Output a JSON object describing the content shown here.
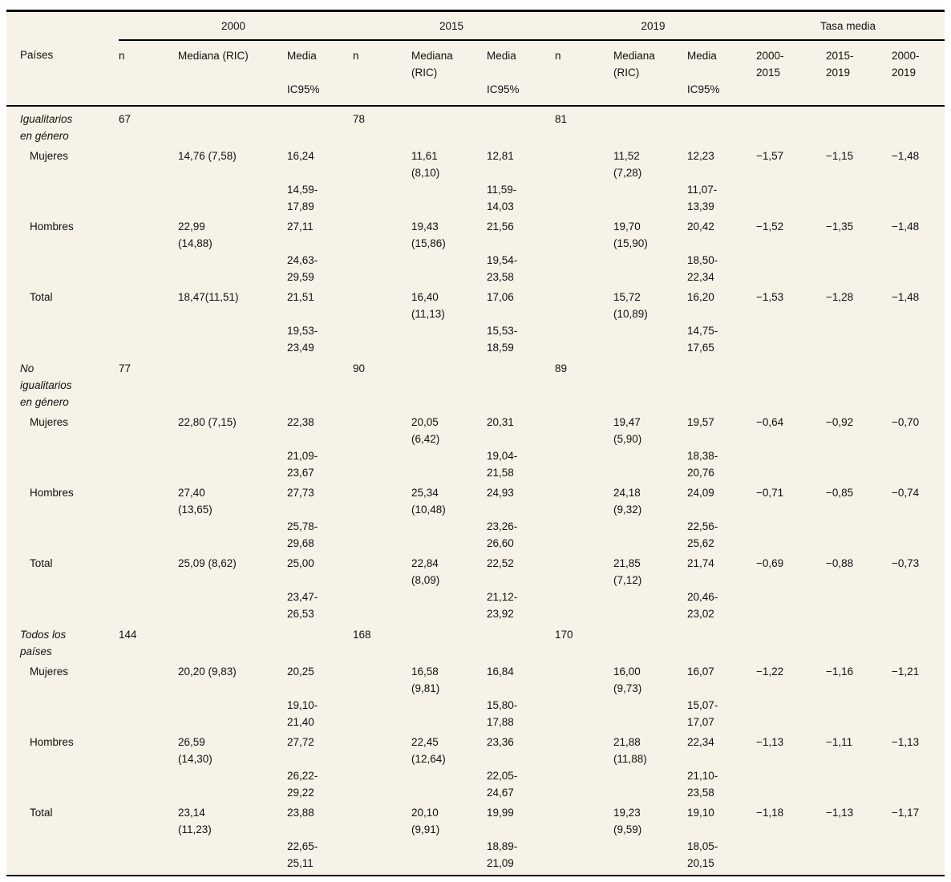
{
  "colors": {
    "table_background": "#f6f2e8",
    "rule": "#000000",
    "text": "#111111"
  },
  "table": {
    "header": {
      "groups": [
        {
          "label": "",
          "span": 1
        },
        {
          "label": "2000",
          "span": 3
        },
        {
          "label": "2015",
          "span": 3
        },
        {
          "label": "2019",
          "span": 3
        },
        {
          "label": "Tasa media",
          "span": 3
        }
      ],
      "columns": [
        "Países",
        "n",
        "Mediana (RIC)",
        "Media",
        "n",
        "Mediana\n(RIC)",
        "Media",
        "n",
        "Mediana\n(RIC)",
        "Media",
        "2000-\n2015",
        "2015-\n2019",
        "2000-\n2019"
      ],
      "ic_row": [
        "",
        "",
        "",
        "IC95%",
        "",
        "",
        "IC95%",
        "",
        "",
        "IC95%",
        "",
        "",
        ""
      ]
    },
    "rows": [
      {
        "type": "group",
        "cells": [
          "Igualitarios\nen género",
          "67",
          "",
          "",
          "78",
          "",
          "",
          "81",
          "",
          "",
          "",
          "",
          ""
        ]
      },
      {
        "type": "main",
        "cells": [
          "Mujeres",
          "",
          "14,76 (7,58)",
          "16,24",
          "",
          "11,61\n(8,10)",
          "12,81",
          "",
          "11,52\n(7,28)",
          "12,23",
          "−1,57",
          "−1,15",
          "−1,48"
        ]
      },
      {
        "type": "ci",
        "cells": [
          "",
          "",
          "",
          "14,59-\n17,89",
          "",
          "",
          "11,59-\n14,03",
          "",
          "",
          "11,07-\n13,39",
          "",
          "",
          ""
        ]
      },
      {
        "type": "main",
        "cells": [
          "Hombres",
          "",
          "22,99\n(14,88)",
          "27,11",
          "",
          "19,43\n(15,86)",
          "21,56",
          "",
          "19,70\n(15,90)",
          "20,42",
          "−1,52",
          "−1,35",
          "−1,48"
        ]
      },
      {
        "type": "ci",
        "cells": [
          "",
          "",
          "",
          "24,63-\n29,59",
          "",
          "",
          "19,54-\n23,58",
          "",
          "",
          "18,50-\n22,34",
          "",
          "",
          ""
        ]
      },
      {
        "type": "main",
        "cells": [
          "Total",
          "",
          "18,47(11,51)",
          "21,51",
          "",
          "16,40\n(11,13)",
          "17,06",
          "",
          "15,72\n(10,89)",
          "16,20",
          "−1,53",
          "−1,28",
          "−1,48"
        ]
      },
      {
        "type": "ci",
        "cells": [
          "",
          "",
          "",
          "19,53-\n23,49",
          "",
          "",
          "15,53-\n18,59",
          "",
          "",
          "14,75-\n17,65",
          "",
          "",
          ""
        ]
      },
      {
        "type": "group",
        "cells": [
          "No\nigualitarios\nen género",
          "77",
          "",
          "",
          "90",
          "",
          "",
          "89",
          "",
          "",
          "",
          "",
          ""
        ]
      },
      {
        "type": "main",
        "cells": [
          "Mujeres",
          "",
          "22,80 (7,15)",
          "22,38",
          "",
          "20,05\n(6,42)",
          "20,31",
          "",
          "19,47\n(5,90)",
          "19,57",
          "−0,64",
          "−0,92",
          "−0,70"
        ]
      },
      {
        "type": "ci",
        "cells": [
          "",
          "",
          "",
          "21,09-\n23,67",
          "",
          "",
          "19,04-\n21,58",
          "",
          "",
          "18,38-\n20,76",
          "",
          "",
          ""
        ]
      },
      {
        "type": "main",
        "cells": [
          "Hombres",
          "",
          "27,40\n(13,65)",
          "27,73",
          "",
          "25,34\n(10,48)",
          "24,93",
          "",
          "24,18\n(9,32)",
          "24,09",
          "−0,71",
          "−0,85",
          "−0,74"
        ]
      },
      {
        "type": "ci",
        "cells": [
          "",
          "",
          "",
          "25,78-\n29,68",
          "",
          "",
          "23,26-\n26,60",
          "",
          "",
          "22,56-\n25,62",
          "",
          "",
          ""
        ]
      },
      {
        "type": "main",
        "cells": [
          "Total",
          "",
          "25,09 (8,62)",
          "25,00",
          "",
          "22,84\n(8,09)",
          "22,52",
          "",
          "21,85\n(7,12)",
          "21,74",
          "−0,69",
          "−0,88",
          "−0,73"
        ]
      },
      {
        "type": "ci",
        "cells": [
          "",
          "",
          "",
          "23,47-\n26,53",
          "",
          "",
          "21,12-\n23,92",
          "",
          "",
          "20,46-\n23,02",
          "",
          "",
          ""
        ]
      },
      {
        "type": "group",
        "cells": [
          "Todos los\npaíses",
          "144",
          "",
          "",
          "168",
          "",
          "",
          "170",
          "",
          "",
          "",
          "",
          ""
        ]
      },
      {
        "type": "main",
        "cells": [
          "Mujeres",
          "",
          "20,20 (9,83)",
          "20,25",
          "",
          "16,58\n(9,81)",
          "16,84",
          "",
          "16,00\n(9,73)",
          "16,07",
          "−1,22",
          "−1,16",
          "−1,21"
        ]
      },
      {
        "type": "ci",
        "cells": [
          "",
          "",
          "",
          "19,10-\n21,40",
          "",
          "",
          "15,80-\n17,88",
          "",
          "",
          "15,07-\n17,07",
          "",
          "",
          ""
        ]
      },
      {
        "type": "main",
        "cells": [
          "Hombres",
          "",
          "26,59\n(14,30)",
          "27,72",
          "",
          "22,45\n(12,64)",
          "23,36",
          "",
          "21,88\n(11,88)",
          "22,34",
          "−1,13",
          "−1,11",
          "−1,13"
        ]
      },
      {
        "type": "ci",
        "cells": [
          "",
          "",
          "",
          "26,22-\n29,22",
          "",
          "",
          "22,05-\n24,67",
          "",
          "",
          "21,10-\n23,58",
          "",
          "",
          ""
        ]
      },
      {
        "type": "main",
        "cells": [
          "Total",
          "",
          "23,14\n(11,23)",
          "23,88",
          "",
          "20,10\n(9,91)",
          "19,99",
          "",
          "19,23\n(9,59)",
          "19,10",
          "−1,18",
          "−1,13",
          "−1,17"
        ]
      },
      {
        "type": "ci",
        "cells": [
          "",
          "",
          "",
          "22,65-\n25,11",
          "",
          "",
          "18,89-\n21,09",
          "",
          "",
          "18,05-\n20,15",
          "",
          "",
          ""
        ]
      }
    ]
  }
}
